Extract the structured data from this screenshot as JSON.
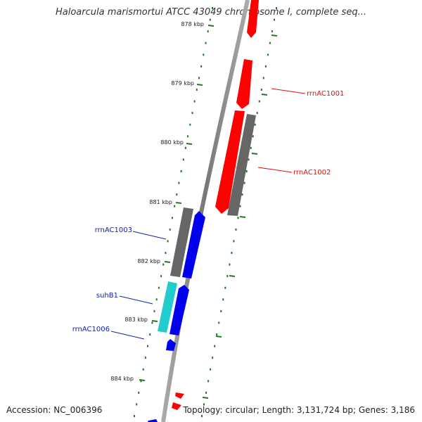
{
  "title": "Haloarcula marismortui ATCC 43049 chromosome I, complete seq...",
  "footer": {
    "accession": "Accession: NC_006396",
    "topology": "Topology: circular; Length: 3,131,724 bp; Genes: 3,186"
  },
  "ruler": {
    "ticks": [
      "878 kbp",
      "879 kbp",
      "880 kbp",
      "881 kbp",
      "882 kbp",
      "883 kbp",
      "884 kbp"
    ]
  },
  "genes": [
    {
      "name": "rrnAC1001",
      "color": "#dd1111"
    },
    {
      "name": "rrnAC1002",
      "color": "#dd1111"
    },
    {
      "name": "rrnAC1003",
      "color": "#1122aa"
    },
    {
      "name": "suhB1",
      "color": "#1122aa"
    },
    {
      "name": "rrnAC1006",
      "color": "#1122aa"
    }
  ],
  "colors": {
    "forward": "#ff0000",
    "reverse": "#0000ee",
    "gray_gene": "#666666",
    "rna": "#22cccc",
    "ticks": "#227722",
    "backbone": "#888888"
  }
}
